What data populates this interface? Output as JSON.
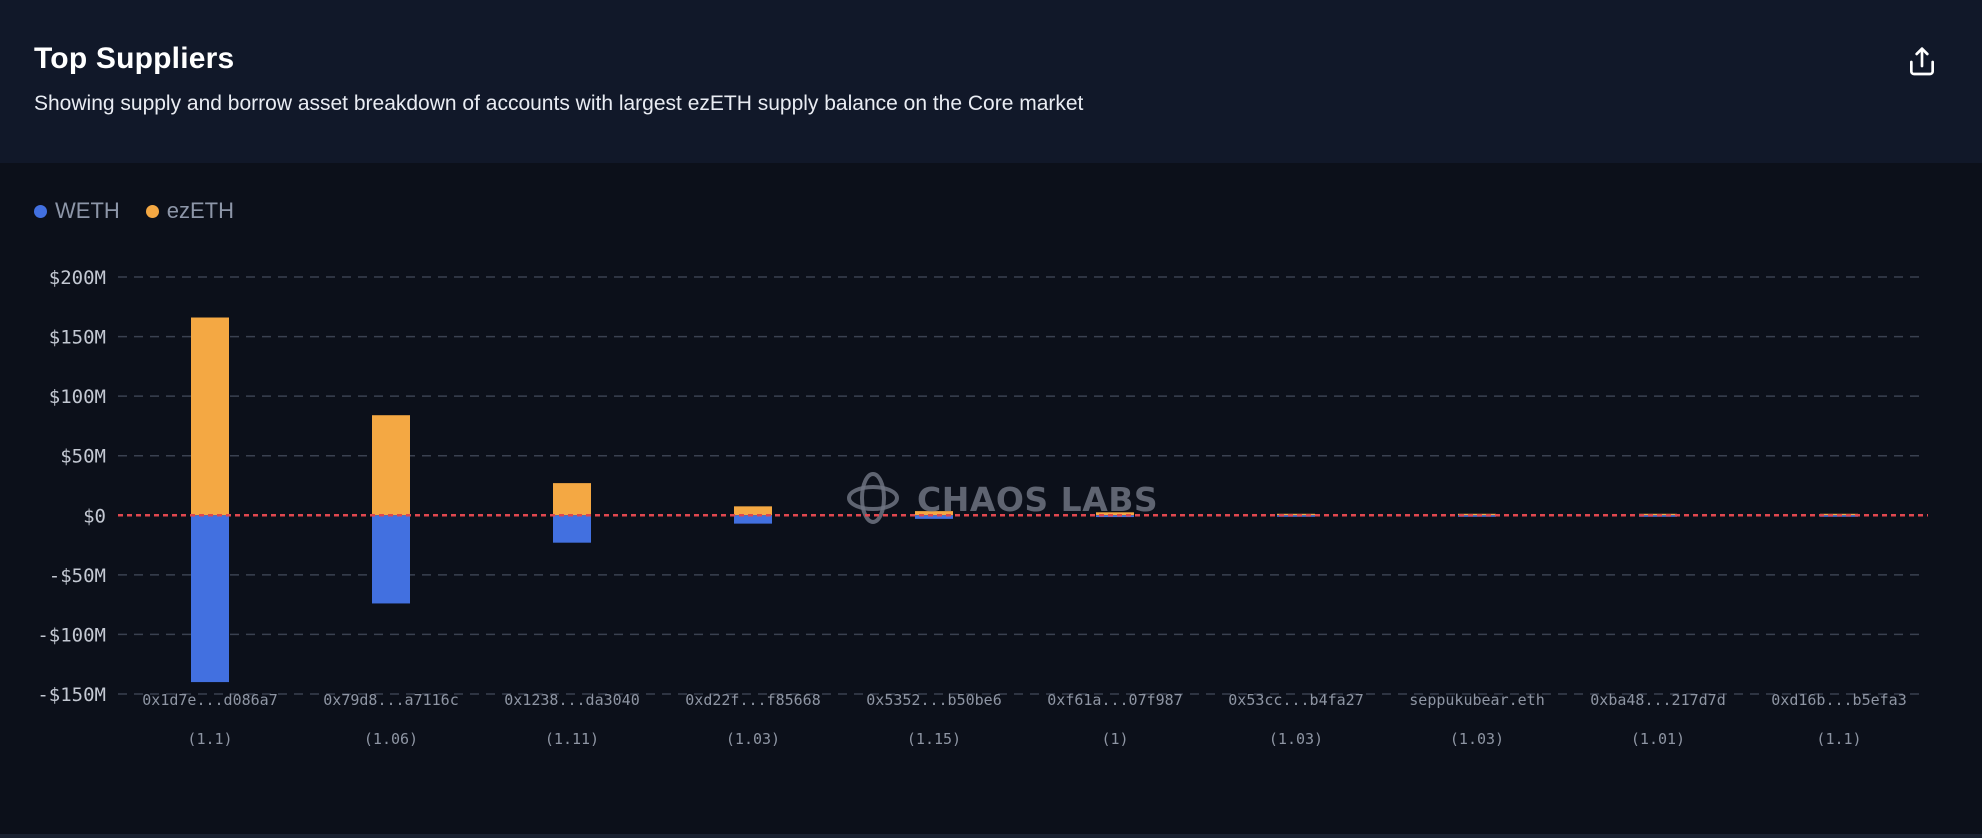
{
  "header": {
    "title": "Top Suppliers",
    "subtitle": "Showing supply and borrow asset breakdown of accounts with largest ezETH supply balance on the Core market",
    "export_icon": "share-upload-icon"
  },
  "watermark": {
    "text": "CHAOS LABS",
    "icon": "chaos-labs-logo-icon"
  },
  "colors": {
    "weth": "#4270e0",
    "ezeth": "#f4a843",
    "zero_line": "#e0474f",
    "grid": "#3a4150"
  },
  "chart_data": {
    "type": "bar",
    "stacked": true,
    "legend": [
      {
        "name": "WETH",
        "color": "#4270e0"
      },
      {
        "name": "ezETH",
        "color": "#f4a843"
      }
    ],
    "legend_position": "top-left",
    "categories": [
      {
        "label": "0x1d7e...d086a7",
        "sublabel": "(1.1)"
      },
      {
        "label": "0x79d8...a7116c",
        "sublabel": "(1.06)"
      },
      {
        "label": "0x1238...da3040",
        "sublabel": "(1.11)"
      },
      {
        "label": "0xd22f...f85668",
        "sublabel": "(1.03)"
      },
      {
        "label": "0x5352...b50be6",
        "sublabel": "(1.15)"
      },
      {
        "label": "0xf61a...07f987",
        "sublabel": "(1)"
      },
      {
        "label": "0x53cc...b4fa27",
        "sublabel": "(1.03)"
      },
      {
        "label": "seppukubear.eth",
        "sublabel": "(1.03)"
      },
      {
        "label": "0xba48...217d7d",
        "sublabel": "(1.01)"
      },
      {
        "label": "0xd16b...b5efa3",
        "sublabel": "(1.1)"
      }
    ],
    "series": [
      {
        "name": "ezETH",
        "color": "#f4a843",
        "values": [
          166,
          84,
          27,
          7.5,
          3.5,
          2.5,
          1.2,
          1,
          0.8,
          0.7
        ]
      },
      {
        "name": "WETH",
        "color": "#4270e0",
        "values": [
          -140,
          -74,
          -23,
          -7,
          -3,
          -1.5,
          -0.6,
          -0.4,
          -0.3,
          -0.2
        ]
      }
    ],
    "yticks": [
      {
        "value": 200,
        "label": "$200M"
      },
      {
        "value": 150,
        "label": "$150M"
      },
      {
        "value": 100,
        "label": "$100M"
      },
      {
        "value": 50,
        "label": "$50M"
      },
      {
        "value": 0,
        "label": "$0"
      },
      {
        "value": -50,
        "label": "-$50M"
      },
      {
        "value": -100,
        "label": "-$100M"
      },
      {
        "value": -150,
        "label": "-$150M"
      }
    ],
    "ylim": [
      -150,
      200
    ],
    "grid": true
  }
}
